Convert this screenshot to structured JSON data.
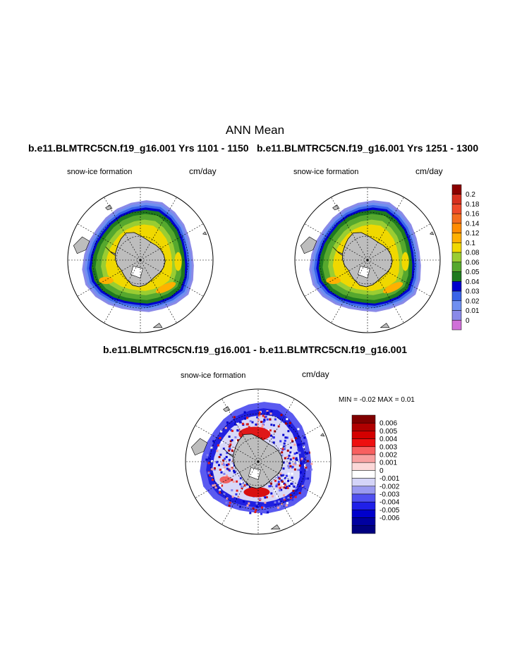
{
  "page": {
    "title": "ANN Mean",
    "case_left": "b.e11.BLMTRC5CN.f19_g16.001  Yrs 1101 - 1150",
    "case_right": "b.e11.BLMTRC5CN.f19_g16.001  Yrs 1251 - 1300",
    "diff_title": "b.e11.BLMTRC5CN.f19_g16.001 - b.e11.BLMTRC5CN.f19_g16.001"
  },
  "chart_data": [
    {
      "type": "heatmap",
      "projection": "polar-stereographic-south",
      "variable": "snow-ice formation",
      "units": "cm/day",
      "period": "Yrs 1101 - 1150"
    },
    {
      "type": "heatmap",
      "projection": "polar-stereographic-south",
      "variable": "snow-ice formation",
      "units": "cm/day",
      "period": "Yrs 1251 - 1300",
      "colorbar": {
        "levels": [
          "0.2",
          "0.18",
          "0.16",
          "0.14",
          "0.12",
          "0.1",
          "0.08",
          "0.06",
          "0.05",
          "0.04",
          "0.03",
          "0.02",
          "0.01",
          "0"
        ],
        "colors": [
          "#8b0000",
          "#d7301f",
          "#ef4a2a",
          "#f46d1e",
          "#ff8c00",
          "#ffb000",
          "#f0d800",
          "#9acd32",
          "#56a82e",
          "#1f7a1f",
          "#0000cd",
          "#3a64e8",
          "#6f8ff0",
          "#8a8ae8",
          "#d070d8"
        ]
      }
    },
    {
      "type": "heatmap",
      "projection": "polar-stereographic-south",
      "variable": "snow-ice formation",
      "units": "cm/day",
      "stats": "MIN =  -0.02 MAX =    0.01",
      "colorbar": {
        "levels": [
          "0.006",
          "0.005",
          "0.004",
          "0.003",
          "0.002",
          "0.001",
          "0",
          "-0.001",
          "-0.002",
          "-0.003",
          "-0.004",
          "-0.005",
          "-0.006"
        ],
        "colors": [
          "#800000",
          "#b00000",
          "#d40000",
          "#ee1010",
          "#f86060",
          "#f8a0a0",
          "#fcd8d8",
          "#ffffff",
          "#d4d4f8",
          "#9a9af0",
          "#5050f0",
          "#2020e8",
          "#0000cc",
          "#0000a0",
          "#000080"
        ]
      }
    }
  ]
}
